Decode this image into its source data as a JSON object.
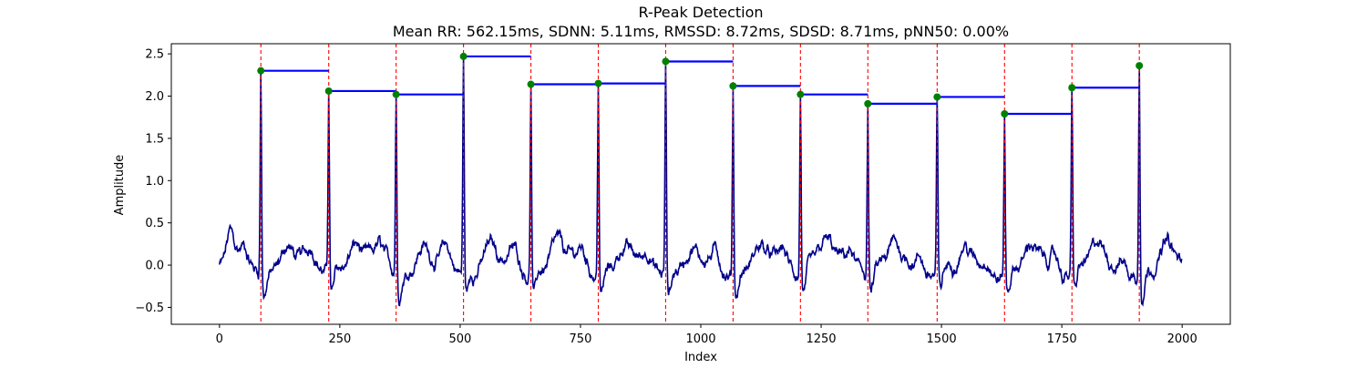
{
  "chart_data": {
    "type": "line",
    "title": "R-Peak Detection",
    "subtitle": "Mean RR: 562.15ms, SDNN: 5.11ms, RMSSD: 8.72ms, SDSD: 8.71ms, pNN50: 0.00%",
    "xlabel": "Index",
    "ylabel": "Amplitude",
    "xlim": [
      -100,
      2100
    ],
    "ylim": [
      -0.7,
      2.62
    ],
    "xticks": [
      0,
      250,
      500,
      750,
      1000,
      1250,
      1500,
      1750,
      2000
    ],
    "yticks": [
      -0.5,
      0.0,
      0.5,
      1.0,
      1.5,
      2.0,
      2.5
    ],
    "xtick_labels": [
      "0",
      "250",
      "500",
      "750",
      "1000",
      "1250",
      "1500",
      "1750",
      "2000"
    ],
    "ytick_labels": [
      "−0.5",
      "0.0",
      "0.5",
      "1.0",
      "1.5",
      "2.0",
      "2.5"
    ],
    "grid": false,
    "signal_length": 2000,
    "r_peaks": {
      "x": [
        86,
        227,
        367,
        507,
        647,
        787,
        927,
        1067,
        1207,
        1347,
        1491,
        1631,
        1771,
        1911
      ],
      "y": [
        2.3,
        2.06,
        2.02,
        2.47,
        2.14,
        2.15,
        2.41,
        2.12,
        2.02,
        1.91,
        1.99,
        1.79,
        2.1,
        2.36
      ]
    },
    "colors": {
      "signal": "#00008b",
      "peak_line": "#ff0000",
      "peak_marker": "#008000",
      "rr_segment": "#0000ff",
      "axes": "#000000"
    }
  }
}
